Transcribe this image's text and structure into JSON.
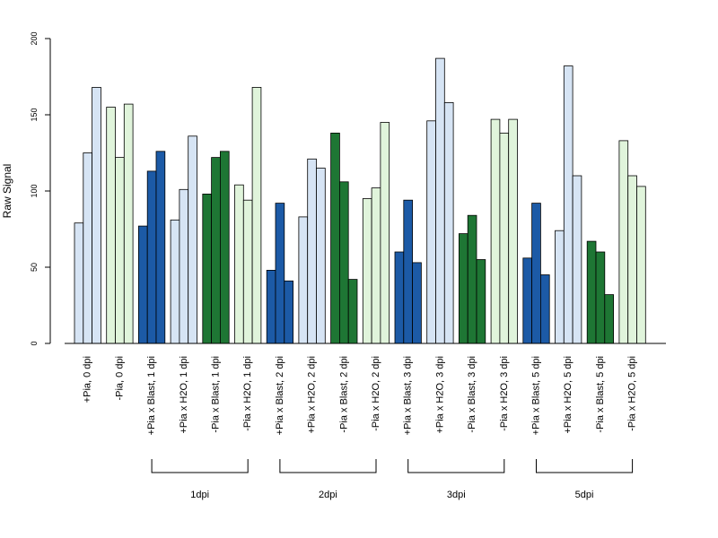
{
  "chart_data": {
    "type": "bar",
    "ylabel": "Raw Signal",
    "ylim": [
      0,
      200
    ],
    "yticks": [
      0,
      50,
      100,
      150,
      200
    ],
    "grid": false,
    "legend": "none",
    "colors": {
      "light_blue": "#d6e4f4",
      "dark_blue": "#1c5aa6",
      "light_green": "#e0f4db",
      "dark_green": "#1e7634",
      "border": "#000000"
    },
    "categories": [
      {
        "label": "+Pia, 0 dpi",
        "color": "light_blue",
        "values": [
          79,
          125,
          168
        ]
      },
      {
        "label": "-Pia, 0 dpi",
        "color": "light_green",
        "values": [
          155,
          122,
          157
        ]
      },
      {
        "label": "+Pia x Blast, 1 dpi",
        "color": "dark_blue",
        "values": [
          77,
          113,
          126
        ]
      },
      {
        "label": "+Pia x H2O, 1 dpi",
        "color": "light_blue",
        "values": [
          81,
          101,
          136
        ]
      },
      {
        "label": "-Pia x Blast, 1 dpi",
        "color": "dark_green",
        "values": [
          98,
          122,
          126
        ]
      },
      {
        "label": "-Pia x H2O, 1 dpi",
        "color": "light_green",
        "values": [
          104,
          94,
          168
        ]
      },
      {
        "label": "+Pia x Blast, 2 dpi",
        "color": "dark_blue",
        "values": [
          48,
          92,
          41
        ]
      },
      {
        "label": "+Pia x H2O, 2 dpi",
        "color": "light_blue",
        "values": [
          83,
          121,
          115
        ]
      },
      {
        "label": "-Pia x Blast, 2 dpi",
        "color": "dark_green",
        "values": [
          138,
          106,
          42
        ]
      },
      {
        "label": "-Pia x H2O, 2 dpi",
        "color": "light_green",
        "values": [
          95,
          102,
          145
        ]
      },
      {
        "label": "+Pia x Blast, 3 dpi",
        "color": "dark_blue",
        "values": [
          60,
          94,
          53
        ]
      },
      {
        "label": "+Pia x H2O, 3 dpi",
        "color": "light_blue",
        "values": [
          146,
          187,
          158
        ]
      },
      {
        "label": "-Pia x Blast, 3 dpi",
        "color": "dark_green",
        "values": [
          72,
          84,
          55
        ]
      },
      {
        "label": "-Pia x H2O, 3 dpi",
        "color": "light_green",
        "values": [
          147,
          138,
          147
        ]
      },
      {
        "label": "+Pia x Blast, 5 dpi",
        "color": "dark_blue",
        "values": [
          56,
          92,
          45
        ]
      },
      {
        "label": "+Pia x H2O, 5 dpi",
        "color": "light_blue",
        "values": [
          74,
          182,
          110
        ]
      },
      {
        "label": "-Pia x Blast, 5 dpi",
        "color": "dark_green",
        "values": [
          67,
          60,
          32
        ]
      },
      {
        "label": "-Pia x H2O, 5 dpi",
        "color": "light_green",
        "values": [
          133,
          110,
          103
        ]
      }
    ],
    "groups": [
      {
        "label": "1dpi",
        "start": 2,
        "end": 5
      },
      {
        "label": "2dpi",
        "start": 6,
        "end": 9
      },
      {
        "label": "3dpi",
        "start": 10,
        "end": 13
      },
      {
        "label": "5dpi",
        "start": 14,
        "end": 17
      }
    ]
  }
}
